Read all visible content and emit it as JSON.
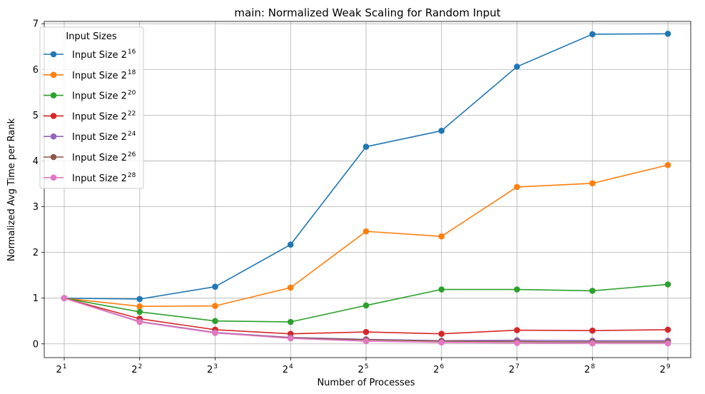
{
  "chart_data": {
    "type": "line",
    "title": "main: Normalized Weak Scaling for Random Input",
    "xlabel": "Number of Processes",
    "ylabel": "Normalized Avg Time per Rank",
    "x_tick_base": "2",
    "x_tick_exponents": [
      "1",
      "2",
      "3",
      "4",
      "5",
      "6",
      "7",
      "8",
      "9"
    ],
    "x": [
      2,
      4,
      8,
      16,
      32,
      64,
      128,
      256,
      512
    ],
    "x_scale": "log2",
    "ylim": [
      -0.3,
      7.05
    ],
    "y_ticks": [
      0,
      1,
      2,
      3,
      4,
      5,
      6,
      7
    ],
    "grid": true,
    "legend": {
      "title": "Input Sizes",
      "placement": "top-left"
    },
    "series": [
      {
        "name": "Input Size 2",
        "name_exponent": "16",
        "color": "#1f77b4",
        "values": [
          1.0,
          0.98,
          1.25,
          2.17,
          4.31,
          4.66,
          6.06,
          6.77,
          6.78
        ]
      },
      {
        "name": "Input Size 2",
        "name_exponent": "18",
        "color": "#ff7f0e",
        "values": [
          1.0,
          0.82,
          0.83,
          1.23,
          2.46,
          2.35,
          3.43,
          3.51,
          3.91
        ]
      },
      {
        "name": "Input Size 2",
        "name_exponent": "20",
        "color": "#2ca02c",
        "values": [
          1.0,
          0.7,
          0.5,
          0.48,
          0.84,
          1.19,
          1.19,
          1.16,
          1.3
        ]
      },
      {
        "name": "Input Size 2",
        "name_exponent": "22",
        "color": "#d62728",
        "values": [
          1.0,
          0.55,
          0.31,
          0.22,
          0.26,
          0.22,
          0.3,
          0.29,
          0.31
        ]
      },
      {
        "name": "Input Size 2",
        "name_exponent": "24",
        "color": "#9467bd",
        "values": [
          1.0,
          0.49,
          0.25,
          0.14,
          0.1,
          0.07,
          0.08,
          0.07,
          0.07
        ]
      },
      {
        "name": "Input Size 2",
        "name_exponent": "26",
        "color": "#8c564b",
        "values": [
          1.0,
          0.48,
          0.24,
          0.13,
          0.09,
          0.06,
          0.05,
          0.04,
          0.04
        ]
      },
      {
        "name": "Input Size 2",
        "name_exponent": "28",
        "color": "#e377c2",
        "values": [
          1.0,
          0.48,
          0.24,
          0.12,
          0.06,
          0.03,
          0.02,
          0.01,
          0.01
        ]
      }
    ]
  }
}
